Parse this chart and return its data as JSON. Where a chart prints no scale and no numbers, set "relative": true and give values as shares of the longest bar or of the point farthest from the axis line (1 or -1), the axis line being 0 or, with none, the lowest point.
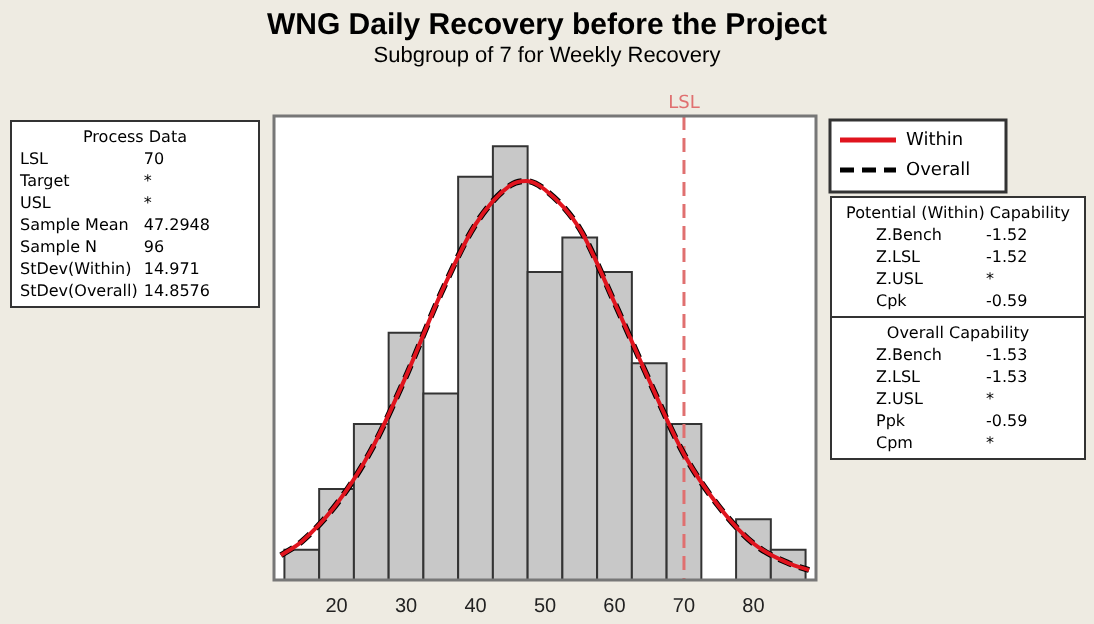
{
  "chart_data": {
    "type": "histogram",
    "title": "WNG Daily Recovery before the Project",
    "subtitle": "Subgroup of 7 for Weekly Recovery",
    "relative": true,
    "bins": [
      12.5,
      17.5,
      22.5,
      27.5,
      32.5,
      37.5,
      42.5,
      47.5,
      52.5,
      57.5,
      62.5,
      67.5,
      72.5,
      77.5,
      82.5,
      87.5
    ],
    "values": [
      0.07,
      0.21,
      0.36,
      0.57,
      0.43,
      0.93,
      1,
      0.71,
      0.79,
      0.71,
      0.5,
      0.36,
      0,
      0.14,
      0.07
    ],
    "color": "#c8c8c8",
    "series": [
      {
        "type": "line",
        "name": "Within",
        "color": "#e0141e",
        "line_style": "solid",
        "x": [
          12,
          15,
          20,
          25,
          30,
          35,
          40,
          45,
          47.3,
          50,
          55,
          60,
          65,
          70,
          75,
          80,
          85,
          88
        ],
        "values": [
          0.057,
          0.089,
          0.175,
          0.3,
          0.47,
          0.66,
          0.82,
          0.91,
          0.92,
          0.9,
          0.81,
          0.64,
          0.46,
          0.29,
          0.17,
          0.084,
          0.039,
          0.023
        ]
      },
      {
        "type": "line",
        "name": "Overall",
        "color": "#000000",
        "line_style": "dashed",
        "x": [
          12,
          15,
          20,
          25,
          30,
          35,
          40,
          45,
          47.3,
          50,
          55,
          60,
          65,
          70,
          75,
          80,
          85,
          88
        ],
        "values": [
          0.057,
          0.089,
          0.175,
          0.3,
          0.47,
          0.66,
          0.82,
          0.91,
          0.92,
          0.9,
          0.81,
          0.64,
          0.46,
          0.29,
          0.17,
          0.084,
          0.039,
          0.023
        ]
      }
    ],
    "xlim": [
      11,
      89
    ],
    "xticks": [
      20,
      30,
      40,
      50,
      60,
      70,
      80
    ],
    "grid": false,
    "legend": "top right",
    "marker": "none",
    "ref_lines": [
      {
        "axis": "x",
        "value": 70,
        "label": "LSL",
        "color": "#e07070",
        "line_style": "dashed"
      }
    ],
    "annotations": [
      "Process Data\nLSL\t70\nTarget\t*\nUSL\t*\nSample Mean\t47.2948\nSample N\t96\nStDev(Within)\t14.971\nStDev(Overall)\t14.8576",
      "Potential (Within) Capability\nZ.Bench\t-1.52\nZ.LSL\t-1.52\nZ.USL\t*\nCpk\t-0.59",
      "Overall Capability\nZ.Bench\t-1.53\nZ.LSL\t-1.53\nZ.USL\t*\nPpk\t-0.59\nCpm\t*"
    ]
  }
}
